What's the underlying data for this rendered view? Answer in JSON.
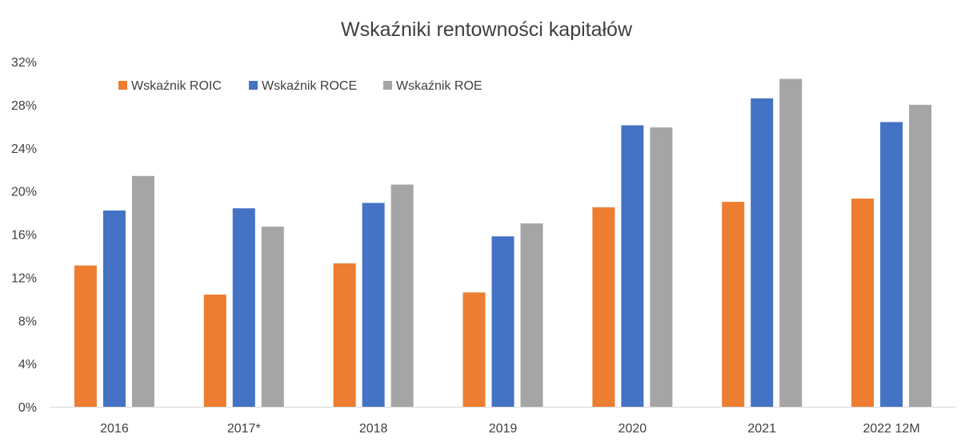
{
  "chart_data": {
    "type": "bar",
    "title": "Wskaźniki rentowności kapitałów",
    "xlabel": "",
    "ylabel": "",
    "categories": [
      "2016",
      "2017*",
      "2018",
      "2019",
      "2020",
      "2021",
      "2022 12M"
    ],
    "series": [
      {
        "name": "Wskaźnik ROIC",
        "color": "#ED7D31",
        "values": [
          13.1,
          10.4,
          13.3,
          10.6,
          18.5,
          19.0,
          19.3
        ]
      },
      {
        "name": "Wskaźnik ROCE",
        "color": "#4472C4",
        "values": [
          18.2,
          18.4,
          18.9,
          15.8,
          26.1,
          28.6,
          26.4
        ]
      },
      {
        "name": "Wskaźnik ROE",
        "color": "#A5A5A5",
        "values": [
          21.4,
          16.7,
          20.6,
          17.0,
          25.9,
          30.4,
          28.0
        ]
      }
    ],
    "ylim": [
      0,
      32
    ],
    "y_ticks": [
      "0%",
      "4%",
      "8%",
      "12%",
      "16%",
      "20%",
      "24%",
      "28%",
      "32%"
    ],
    "y_tick_values": [
      0,
      4,
      8,
      12,
      16,
      20,
      24,
      28,
      32
    ],
    "grid": false,
    "legend_position": "top-left"
  }
}
